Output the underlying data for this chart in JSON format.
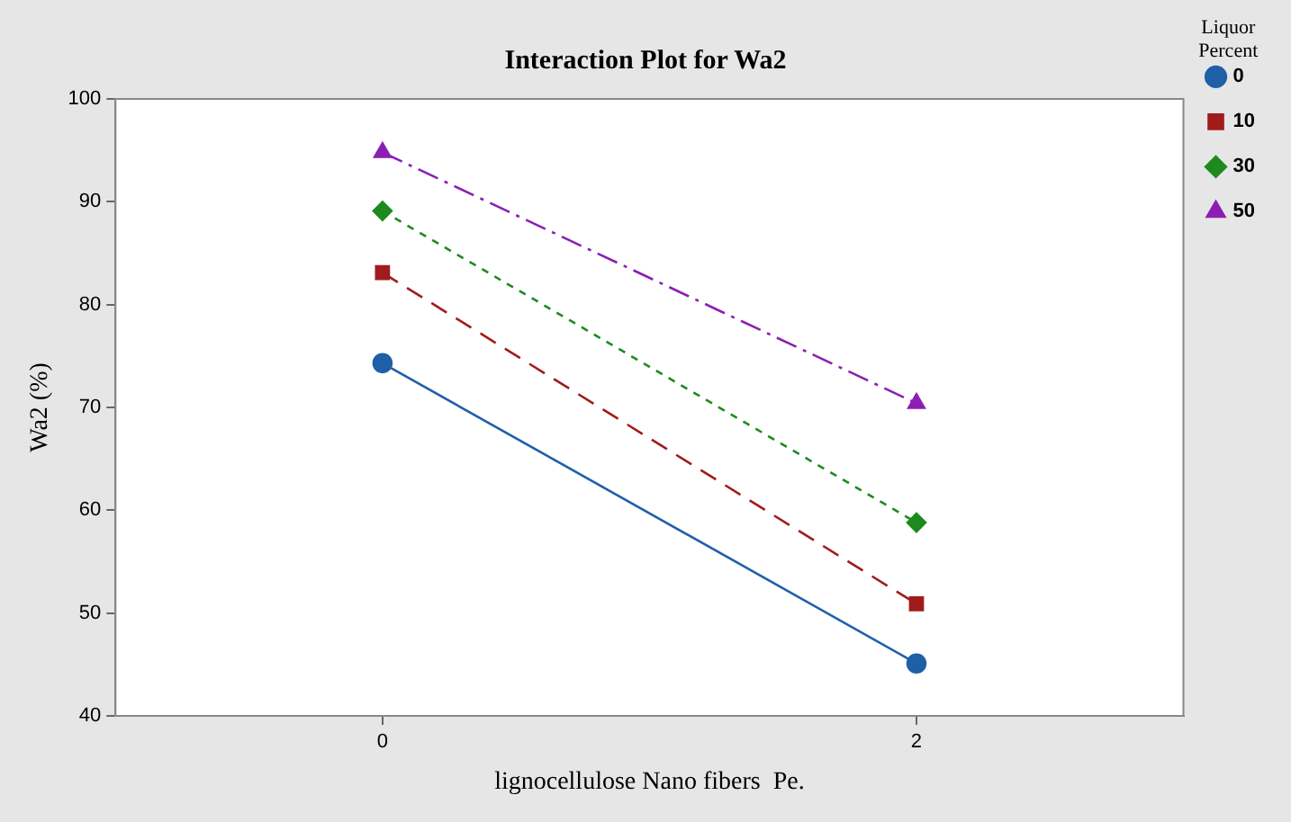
{
  "chart_data": {
    "type": "line",
    "title": "Interaction Plot for Wa2",
    "xlabel": "lignocellulose Nano fibers  Pe.",
    "ylabel": "Wa2 (%)",
    "legend_title": "Liquor Percent",
    "legend": "top right",
    "grid": false,
    "x": [
      0,
      2
    ],
    "xlim": [
      -1,
      3
    ],
    "xticks": [
      0,
      2
    ],
    "ylim": [
      40,
      100
    ],
    "yticks": [
      40,
      50,
      60,
      70,
      80,
      90,
      100
    ],
    "series": [
      {
        "name": "0",
        "color": "#1f5fa8",
        "values": [
          74.3,
          45.1
        ],
        "marker": "circle",
        "line_style": "solid"
      },
      {
        "name": "10",
        "color": "#a01c1c",
        "values": [
          83.1,
          50.9
        ],
        "marker": "square",
        "line_style": "dashed"
      },
      {
        "name": "30",
        "color": "#1e8a1e",
        "values": [
          89.1,
          58.8
        ],
        "marker": "diamond",
        "line_style": "dotted"
      },
      {
        "name": "50",
        "color": "#8b1fb4",
        "values": [
          94.8,
          70.4
        ],
        "marker": "triangle",
        "line_style": "dashdot"
      }
    ]
  }
}
